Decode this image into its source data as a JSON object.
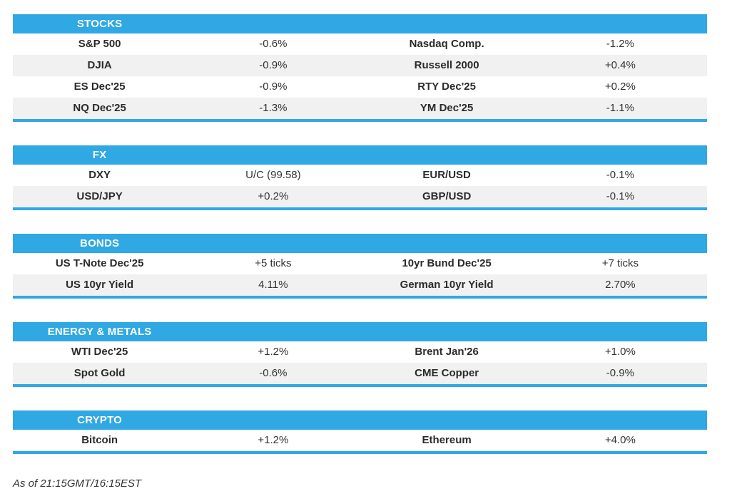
{
  "colors": {
    "accent": "#2FA8E4",
    "row-alt": "#F1F1F2",
    "text": "#2B2B2B",
    "header-text": "#FFFFFF"
  },
  "sections": [
    {
      "title": "STOCKS",
      "rows": [
        {
          "l_label": "S&P 500",
          "l_value": "-0.6%",
          "r_label": "Nasdaq Comp.",
          "r_value": "-1.2%"
        },
        {
          "l_label": "DJIA",
          "l_value": "-0.9%",
          "r_label": "Russell 2000",
          "r_value": "+0.4%"
        },
        {
          "l_label": "ES Dec'25",
          "l_value": "-0.9%",
          "r_label": "RTY Dec'25",
          "r_value": "+0.2%"
        },
        {
          "l_label": "NQ Dec'25",
          "l_value": "-1.3%",
          "r_label": "YM Dec'25",
          "r_value": "-1.1%"
        }
      ]
    },
    {
      "title": "FX",
      "rows": [
        {
          "l_label": "DXY",
          "l_value": "U/C (99.58)",
          "r_label": "EUR/USD",
          "r_value": "-0.1%"
        },
        {
          "l_label": "USD/JPY",
          "l_value": "+0.2%",
          "r_label": "GBP/USD",
          "r_value": "-0.1%"
        }
      ]
    },
    {
      "title": "BONDS",
      "rows": [
        {
          "l_label": "US T-Note Dec'25",
          "l_value": "+5 ticks",
          "r_label": "10yr Bund Dec'25",
          "r_value": "+7 ticks"
        },
        {
          "l_label": "US 10yr Yield",
          "l_value": "4.11%",
          "r_label": "German 10yr Yield",
          "r_value": "2.70%"
        }
      ]
    },
    {
      "title": "ENERGY & METALS",
      "rows": [
        {
          "l_label": "WTI Dec'25",
          "l_value": "+1.2%",
          "r_label": "Brent Jan'26",
          "r_value": "+1.0%"
        },
        {
          "l_label": "Spot Gold",
          "l_value": "-0.6%",
          "r_label": "CME Copper",
          "r_value": "-0.9%"
        }
      ]
    },
    {
      "title": "CRYPTO",
      "rows": [
        {
          "l_label": "Bitcoin",
          "l_value": "+1.2%",
          "r_label": "Ethereum",
          "r_value": "+4.0%"
        }
      ]
    }
  ],
  "footer": {
    "as_of": "As of 21:15GMT/16:15EST"
  }
}
